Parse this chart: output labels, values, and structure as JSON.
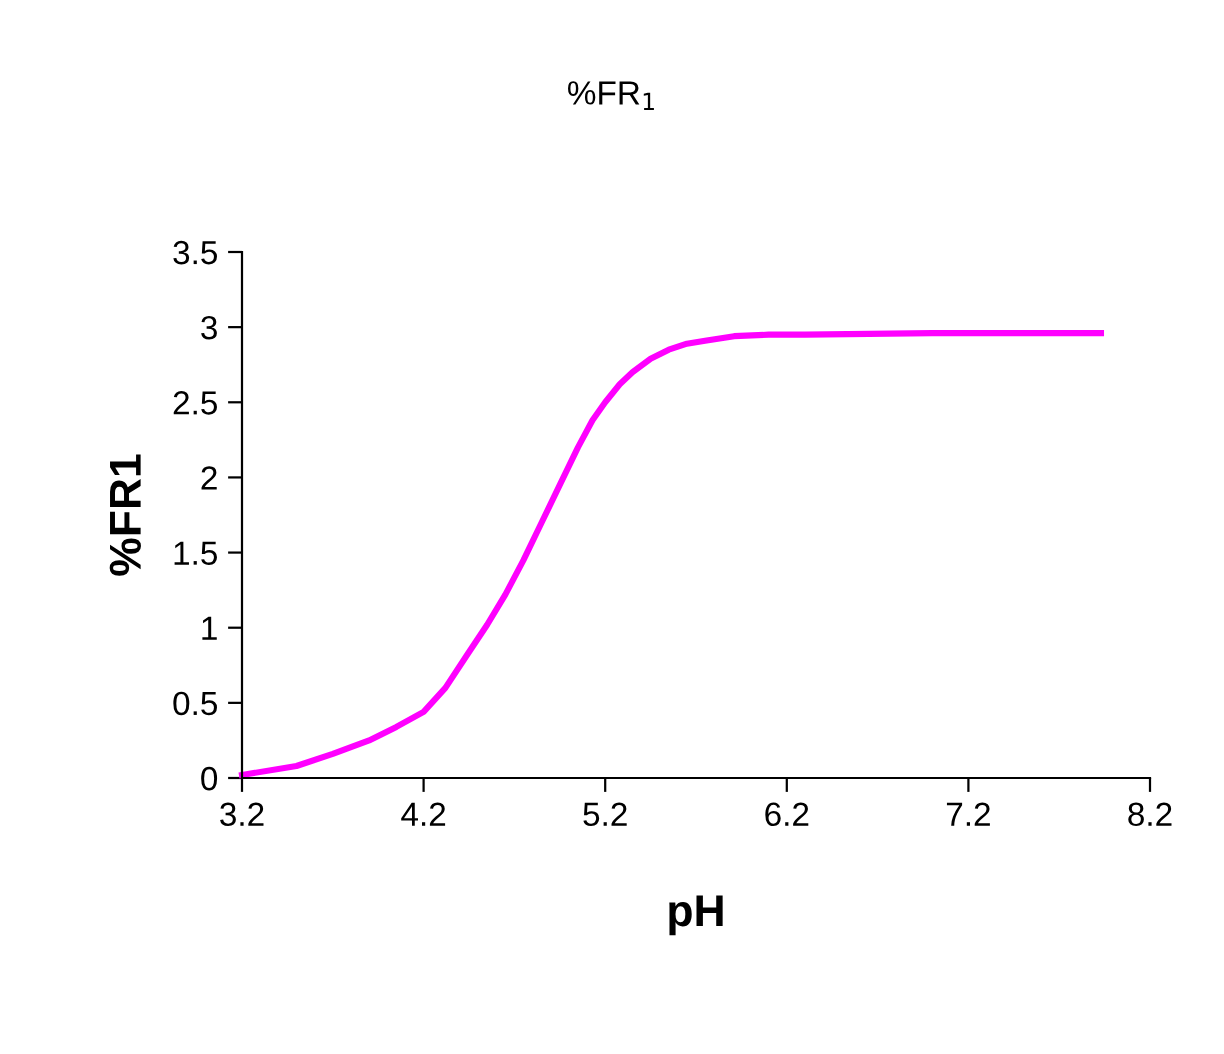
{
  "chart_data": {
    "type": "line",
    "title": "%FR$_{1}$",
    "xlabel": "pH",
    "ylabel": "%FR1",
    "xlim": [
      3.2,
      8.2
    ],
    "xticks": [
      3.2,
      4.2,
      5.2,
      6.2,
      7.2,
      8.2
    ],
    "ylim": [
      0,
      3.5
    ],
    "yticks": [
      0,
      0.5,
      1,
      1.5,
      2,
      2.5,
      3,
      3.5
    ],
    "grid": false,
    "legend": false,
    "marker": "none",
    "line_style": "solid",
    "series": [
      {
        "color": "#ff00ff",
        "x": [
          3.2,
          3.5,
          3.7,
          3.9,
          4.05,
          4.2,
          4.32,
          4.44,
          4.55,
          4.65,
          4.75,
          4.85,
          4.95,
          5.05,
          5.13,
          5.2,
          5.28,
          5.35,
          5.45,
          5.55,
          5.65,
          5.75,
          5.91,
          6.1,
          6.3,
          7.0,
          7.93
        ],
        "values": [
          0.02,
          0.08,
          0.16,
          0.25,
          0.34,
          0.44,
          0.6,
          0.82,
          1.02,
          1.22,
          1.45,
          1.7,
          1.95,
          2.2,
          2.38,
          2.5,
          2.62,
          2.7,
          2.79,
          2.85,
          2.89,
          2.91,
          2.94,
          2.95,
          2.95,
          2.96,
          2.96
        ]
      }
    ]
  }
}
